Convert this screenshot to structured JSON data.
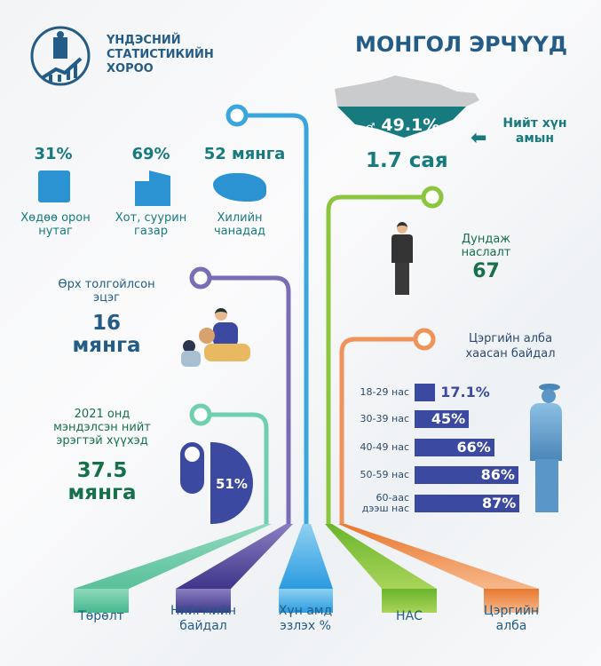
{
  "logo": {
    "line1": "ҮНДЭСНИЙ",
    "line2": "СТАТИСТИКИЙН",
    "line3": "ХОРОО"
  },
  "title": "МОНГОЛ ЭРЧҮҮД",
  "population": {
    "male_symbol": "♂",
    "share": "49.1%",
    "total": "1.7 сая",
    "label": "Нийт хүн амын",
    "arrow_icon": "arrow-left-icon"
  },
  "residence": [
    {
      "value": "31%",
      "label1": "Хөдөө орон",
      "label2": "нутаг",
      "icon": "countryside-icon"
    },
    {
      "value": "69%",
      "label1": "Хот, суурин",
      "label2": "газар",
      "icon": "city-buildings-icon"
    },
    {
      "value": "52 мянга",
      "label1": "Хилийн",
      "label2": "чанадад",
      "icon": "world-map-icon"
    }
  ],
  "life_expectancy": {
    "label1": "Дундаж",
    "label2": "наслалт",
    "value": "67"
  },
  "single_fathers": {
    "label1": "Өрх толгойлсон",
    "label2": "эцэг",
    "value1": "16",
    "value2": "мянга"
  },
  "births": {
    "label1": "2021 онд",
    "label2": "мэндэлсэн нийт",
    "label3": "эрэгтэй хүүхэд",
    "value1": "37.5",
    "value2": "мянга",
    "share": "51%",
    "share_value": 51
  },
  "military": {
    "title1": "Цэргийн алба",
    "title2": "хаасан байдал",
    "chart_data": {
      "type": "bar",
      "categories": [
        "18-29 нас",
        "30-39 нас",
        "40-49 нас",
        "50-59 нас",
        "60-аас дээш нас"
      ],
      "values": [
        17.1,
        45,
        66,
        86,
        87
      ],
      "labels": [
        "17.1%",
        "45%",
        "66%",
        "86%",
        "87%"
      ],
      "bar_color": "#3b4aa0"
    }
  },
  "categories": [
    {
      "label1": "Төрөлт",
      "label2": "",
      "color": "#5cc4a0"
    },
    {
      "label1": "Нийгмийн",
      "label2": "байдал",
      "color": "#5a4a9e"
    },
    {
      "label1": "Хүн амд",
      "label2": "эзлэх %",
      "color": "#3aa6dd"
    },
    {
      "label1": "НАС",
      "label2": "",
      "color": "#8cc63f"
    },
    {
      "label1": "Цэргийн",
      "label2": "алба",
      "color": "#f0935a"
    }
  ]
}
